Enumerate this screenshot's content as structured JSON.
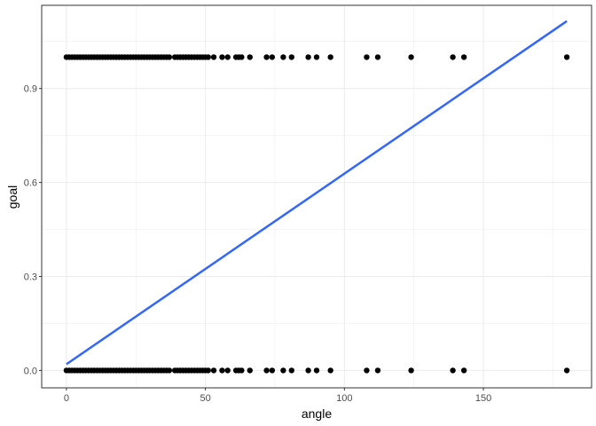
{
  "chart_data": {
    "type": "scatter",
    "title": "",
    "xlabel": "angle",
    "ylabel": "goal",
    "xlim": [
      -8.9,
      188.9
    ],
    "ylim": [
      -0.0555,
      1.1655
    ],
    "x_ticks": [
      0,
      50,
      100,
      150
    ],
    "y_ticks": [
      0.0,
      0.3,
      0.6,
      0.9
    ],
    "x_tick_labels": [
      "0",
      "50",
      "100",
      "150"
    ],
    "y_tick_labels": [
      "0.0",
      "0.3",
      "0.6",
      "0.9"
    ],
    "grid": true,
    "legend": "none",
    "point_color": "#000000",
    "fit_color": "#3366FF",
    "series": [
      {
        "values_y0_x": [
          0,
          1,
          2,
          3,
          4,
          5,
          6,
          7,
          8,
          9,
          10,
          11,
          12,
          13,
          14,
          15,
          16,
          17,
          18,
          19,
          20,
          21,
          22,
          23,
          24,
          25,
          26,
          27,
          28,
          29,
          30,
          31,
          32,
          33,
          34,
          35,
          36,
          37,
          39,
          40,
          41,
          42,
          43,
          44,
          45,
          46,
          47,
          48,
          49,
          50,
          51,
          53,
          56,
          58,
          61,
          62,
          63,
          66,
          72,
          74,
          78,
          81,
          87,
          90,
          95,
          108,
          112,
          124,
          139,
          143,
          180
        ],
        "values_y1_x": [
          0,
          1,
          2,
          3,
          4,
          5,
          6,
          7,
          8,
          9,
          10,
          11,
          12,
          13,
          14,
          15,
          16,
          17,
          18,
          19,
          20,
          21,
          22,
          23,
          24,
          25,
          26,
          27,
          28,
          29,
          30,
          31,
          32,
          33,
          34,
          35,
          36,
          37,
          39,
          40,
          41,
          42,
          43,
          44,
          45,
          46,
          47,
          48,
          49,
          50,
          51,
          53,
          56,
          58,
          61,
          62,
          63,
          66,
          72,
          74,
          78,
          81,
          87,
          90,
          95,
          108,
          112,
          124,
          139,
          143,
          180
        ]
      },
      {
        "fit_line": {
          "x": [
            0,
            180
          ],
          "y": [
            0.02,
            1.115
          ]
        }
      }
    ]
  }
}
